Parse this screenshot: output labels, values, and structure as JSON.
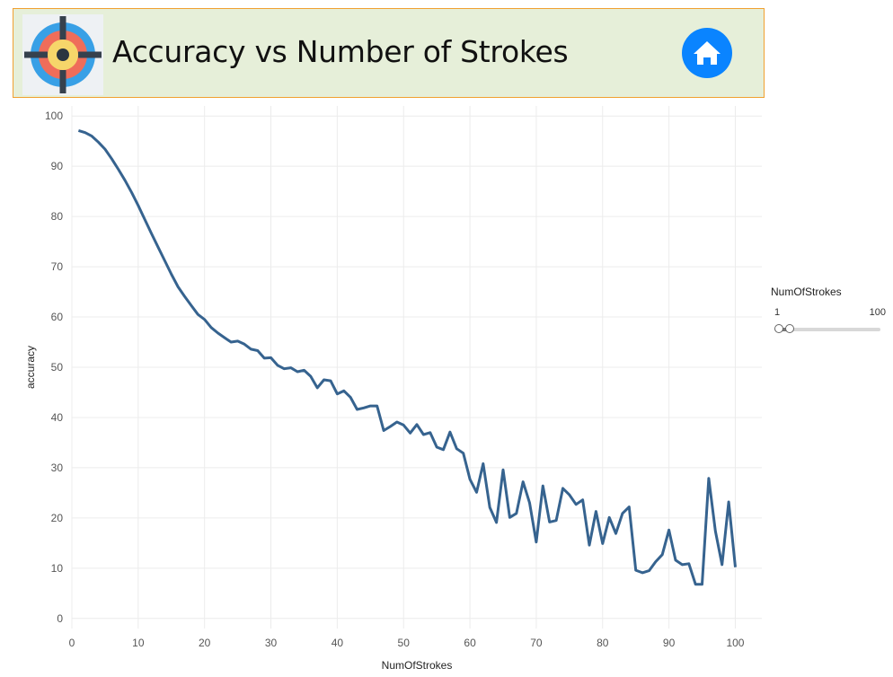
{
  "header": {
    "title": "Accuracy vs Number of Strokes",
    "logo_icon": "target-crosshair-icon",
    "home_icon": "home-icon",
    "colors": {
      "banner_bg": "#e6efd9",
      "banner_border": "#f0a030",
      "home": "#0a84ff"
    }
  },
  "filter": {
    "title": "NumOfStrokes",
    "min_label": "1",
    "max_label": "100",
    "range": [
      1,
      100
    ],
    "selected": [
      1,
      100
    ]
  },
  "chart_data": {
    "type": "line",
    "title": "",
    "xlabel": "NumOfStrokes",
    "ylabel": "accuracy",
    "xlim": [
      0,
      104
    ],
    "ylim": [
      -2,
      102
    ],
    "xticks": [
      0,
      10,
      20,
      30,
      40,
      50,
      60,
      70,
      80,
      90,
      100
    ],
    "yticks": [
      0,
      10,
      20,
      30,
      40,
      50,
      60,
      70,
      80,
      90,
      100
    ],
    "grid": true,
    "color": "#36638f",
    "x": [
      1,
      2,
      3,
      4,
      5,
      6,
      7,
      8,
      9,
      10,
      11,
      12,
      13,
      14,
      15,
      16,
      17,
      18,
      19,
      20,
      21,
      22,
      23,
      24,
      25,
      26,
      27,
      28,
      29,
      30,
      31,
      32,
      33,
      34,
      35,
      36,
      37,
      38,
      39,
      40,
      41,
      42,
      43,
      44,
      45,
      46,
      47,
      48,
      49,
      50,
      51,
      52,
      53,
      54,
      55,
      56,
      57,
      58,
      59,
      60,
      61,
      62,
      63,
      64,
      65,
      66,
      67,
      68,
      69,
      70,
      71,
      72,
      73,
      74,
      75,
      76,
      77,
      78,
      79,
      80,
      81,
      82,
      83,
      84,
      85,
      86,
      87,
      88,
      89,
      90,
      91,
      92,
      93,
      94,
      95,
      96,
      97,
      98,
      99,
      100
    ],
    "y": [
      97.1,
      96.7,
      96.0,
      94.8,
      93.4,
      91.5,
      89.4,
      87.2,
      84.8,
      82.2,
      79.4,
      76.6,
      73.9,
      71.2,
      68.5,
      66.0,
      64.1,
      62.3,
      60.5,
      59.5,
      57.9,
      56.8,
      55.9,
      55.0,
      55.2,
      54.6,
      53.6,
      53.3,
      51.8,
      51.9,
      50.4,
      49.7,
      49.9,
      49.1,
      49.4,
      48.2,
      45.9,
      47.5,
      47.3,
      44.7,
      45.3,
      44.0,
      41.6,
      41.9,
      42.3,
      42.3,
      37.4,
      38.2,
      39.1,
      38.5,
      36.9,
      38.6,
      36.6,
      37.0,
      34.1,
      33.6,
      37.1,
      33.8,
      32.9,
      27.7,
      25.1,
      30.8,
      22.1,
      19.1,
      29.6,
      20.1,
      20.9,
      27.2,
      23.0,
      15.2,
      26.4,
      19.2,
      19.5,
      25.9,
      24.6,
      22.7,
      23.6,
      14.6,
      21.3,
      14.9,
      20.1,
      16.9,
      20.9,
      22.2,
      9.6,
      9.1,
      9.5,
      11.3,
      12.7,
      17.6,
      11.6,
      10.7,
      10.9,
      6.8,
      6.8,
      27.9,
      17.4,
      10.7,
      23.2,
      10.2
    ]
  }
}
